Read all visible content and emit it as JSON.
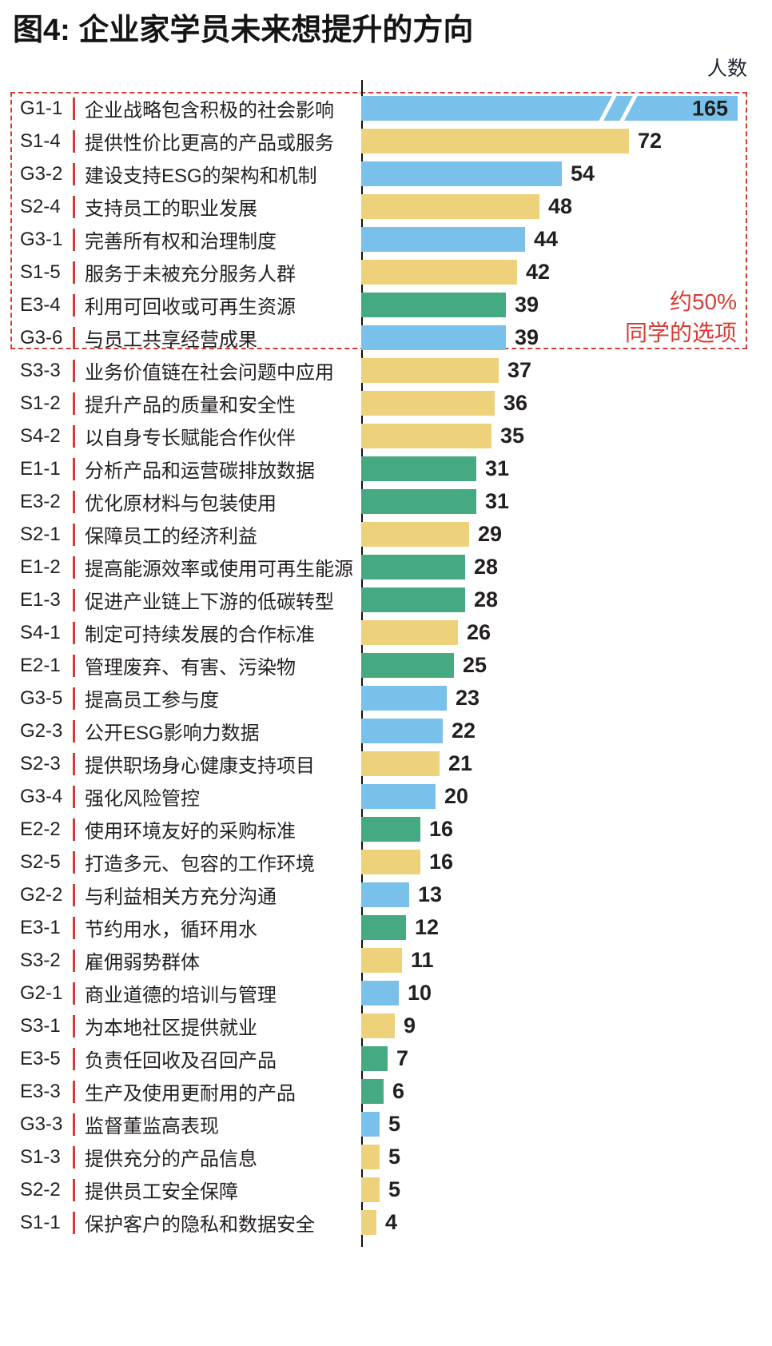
{
  "title": "图4: 企业家学员未来想提升的方向",
  "annotation": {
    "line1": "约50%",
    "line2": "同学的选项"
  },
  "colors": {
    "E": "#45a981",
    "S": "#edd17b",
    "G": "#79c1ea",
    "accent_red": "#d63c34"
  },
  "chart_data": {
    "type": "bar",
    "orientation": "horizontal",
    "unit_label": "人数",
    "legend_position": "none",
    "grid": false,
    "axis_break_item": "G1-1",
    "highlight_note": "约50% 同学的选项",
    "highlight_row_count": 8,
    "category_color_key": {
      "E": "environment-green",
      "S": "social-yellow",
      "G": "governance-blue"
    },
    "items": [
      {
        "code": "G1-1",
        "label": "企业战略包含积极的社会影响",
        "value": 165
      },
      {
        "code": "S1-4",
        "label": "提供性价比更高的产品或服务",
        "value": 72
      },
      {
        "code": "G3-2",
        "label": "建设支持ESG的架构和机制",
        "value": 54
      },
      {
        "code": "S2-4",
        "label": "支持员工的职业发展",
        "value": 48
      },
      {
        "code": "G3-1",
        "label": "完善所有权和治理制度",
        "value": 44
      },
      {
        "code": "S1-5",
        "label": "服务于未被充分服务人群",
        "value": 42
      },
      {
        "code": "E3-4",
        "label": "利用可回收或可再生资源",
        "value": 39
      },
      {
        "code": "G3-6",
        "label": "与员工共享经营成果",
        "value": 39
      },
      {
        "code": "S3-3",
        "label": "业务价值链在社会问题中应用",
        "value": 37
      },
      {
        "code": "S1-2",
        "label": "提升产品的质量和安全性",
        "value": 36
      },
      {
        "code": "S4-2",
        "label": "以自身专长赋能合作伙伴",
        "value": 35
      },
      {
        "code": "E1-1",
        "label": "分析产品和运营碳排放数据",
        "value": 31
      },
      {
        "code": "E3-2",
        "label": "优化原材料与包装使用",
        "value": 31
      },
      {
        "code": "S2-1",
        "label": "保障员工的经济利益",
        "value": 29
      },
      {
        "code": "E1-2",
        "label": "提高能源效率或使用可再生能源",
        "value": 28
      },
      {
        "code": "E1-3",
        "label": "促进产业链上下游的低碳转型",
        "value": 28
      },
      {
        "code": "S4-1",
        "label": "制定可持续发展的合作标准",
        "value": 26
      },
      {
        "code": "E2-1",
        "label": "管理废弃、有害、污染物",
        "value": 25
      },
      {
        "code": "G3-5",
        "label": "提高员工参与度",
        "value": 23
      },
      {
        "code": "G2-3",
        "label": "公开ESG影响力数据",
        "value": 22
      },
      {
        "code": "S2-3",
        "label": "提供职场身心健康支持项目",
        "value": 21
      },
      {
        "code": "G3-4",
        "label": "强化风险管控",
        "value": 20
      },
      {
        "code": "E2-2",
        "label": "使用环境友好的采购标准",
        "value": 16
      },
      {
        "code": "S2-5",
        "label": "打造多元、包容的工作环境",
        "value": 16
      },
      {
        "code": "G2-2",
        "label": "与利益相关方充分沟通",
        "value": 13
      },
      {
        "code": "E3-1",
        "label": "节约用水，循环用水",
        "value": 12
      },
      {
        "code": "S3-2",
        "label": "雇佣弱势群体",
        "value": 11
      },
      {
        "code": "G2-1",
        "label": "商业道德的培训与管理",
        "value": 10
      },
      {
        "code": "S3-1",
        "label": "为本地社区提供就业",
        "value": 9
      },
      {
        "code": "E3-5",
        "label": "负责任回收及召回产品",
        "value": 7
      },
      {
        "code": "E3-3",
        "label": "生产及使用更耐用的产品",
        "value": 6
      },
      {
        "code": "G3-3",
        "label": "监督董监高表现",
        "value": 5
      },
      {
        "code": "S1-3",
        "label": "提供充分的产品信息",
        "value": 5
      },
      {
        "code": "S2-2",
        "label": "提供员工安全保障",
        "value": 5
      },
      {
        "code": "S1-1",
        "label": "保护客户的隐私和数据安全",
        "value": 4
      }
    ]
  }
}
